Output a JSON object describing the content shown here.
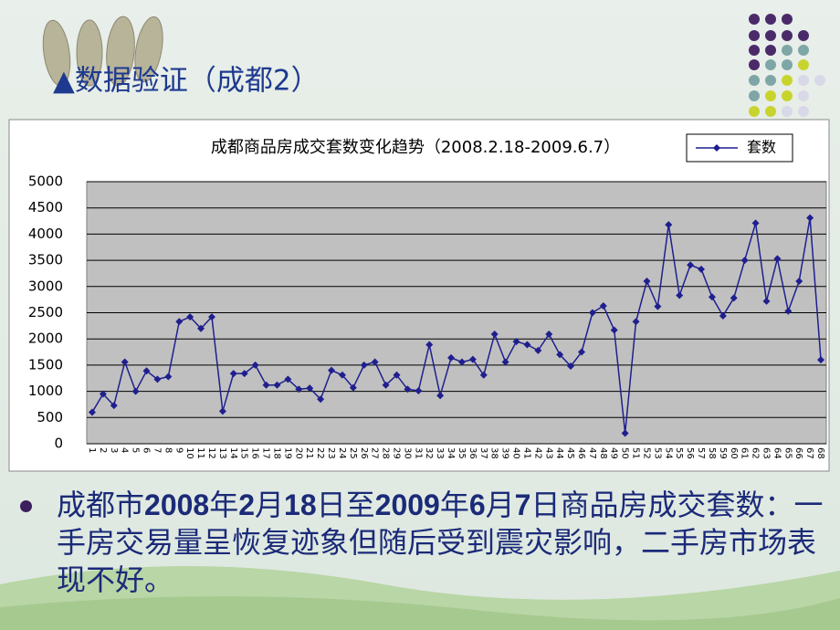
{
  "slide_title": "▲数据验证（成都2）",
  "chart_data": {
    "type": "line",
    "title": "成都商品房成交套数变化趋势（2008.2.18-2009.6.7）",
    "categories": [
      "1",
      "2",
      "3",
      "4",
      "5",
      "6",
      "7",
      "8",
      "9",
      "10",
      "11",
      "12",
      "13",
      "14",
      "15",
      "16",
      "17",
      "18",
      "19",
      "20",
      "21",
      "22",
      "23",
      "24",
      "25",
      "26",
      "27",
      "28",
      "29",
      "30",
      "31",
      "32",
      "33",
      "34",
      "35",
      "36",
      "37",
      "38",
      "39",
      "40",
      "41",
      "42",
      "43",
      "44",
      "45",
      "46",
      "47",
      "48",
      "49",
      "50",
      "51",
      "52",
      "53",
      "54",
      "55",
      "56",
      "57",
      "58",
      "59",
      "60",
      "61",
      "62",
      "63",
      "64",
      "65",
      "66",
      "67",
      "68"
    ],
    "series": [
      {
        "name": "套数",
        "color": "#1f1f8f",
        "values": [
          600,
          950,
          730,
          1560,
          1000,
          1390,
          1230,
          1280,
          2330,
          2420,
          2200,
          2420,
          620,
          1340,
          1340,
          1500,
          1120,
          1120,
          1230,
          1040,
          1060,
          850,
          1400,
          1310,
          1070,
          1500,
          1560,
          1120,
          1310,
          1040,
          1010,
          1890,
          920,
          1640,
          1560,
          1610,
          1310,
          2090,
          1560,
          1950,
          1890,
          1780,
          2090,
          1700,
          1480,
          1750,
          2500,
          2630,
          2170,
          200,
          2330,
          3100,
          2620,
          4180,
          2830,
          3410,
          3330,
          2800,
          2440,
          2780,
          3500,
          4210,
          2720,
          3530,
          2530,
          3100,
          4310,
          1600
        ]
      }
    ],
    "ylim": [
      0,
      5000
    ],
    "yticks": [
      0,
      500,
      1000,
      1500,
      2000,
      2500,
      3000,
      3500,
      4000,
      4500,
      5000
    ],
    "grid": true,
    "legend": "top-right"
  },
  "bullet": [
    "成都市",
    "2008",
    "年",
    "2",
    "月",
    "18",
    "日至",
    "2009",
    "年",
    "6",
    "月",
    "7",
    "日商品房成交套数：一手房交易量呈恢复迹象但随后受到震灾影响，二手房市场表现不好。"
  ]
}
